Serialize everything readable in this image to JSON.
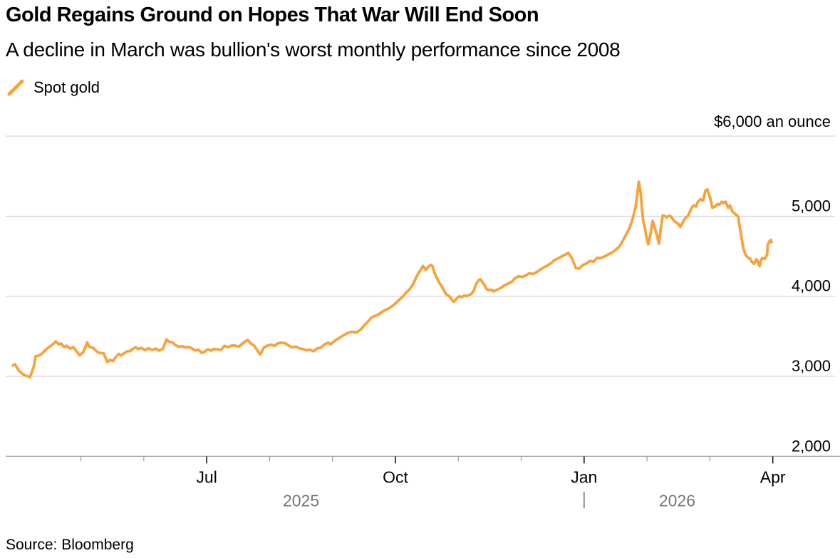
{
  "header": {
    "title": "Gold Regains Ground on Hopes That War Will End Soon",
    "subtitle": "A decline in March was bullion's worst monthly performance since 2008"
  },
  "legend": {
    "label": "Spot gold",
    "marker": "orange-slash"
  },
  "source": {
    "text": "Source: Bloomberg"
  },
  "colors": {
    "line": "#F7A33C",
    "grid": "#CDCDCD",
    "axis_line": "#A9A9A9",
    "tick_major": "#1A1A1A",
    "tick_minor": "#9B9B9B",
    "year_text": "#767676",
    "label_text": "#000000",
    "background": "#FFFFFF"
  },
  "chart_data": {
    "type": "line",
    "title": "Gold Regains Ground on Hopes That War Will End Soon",
    "subtitle": "A decline in March was bullion's worst monthly performance since 2008",
    "unit_label": "$6,000 an ounce",
    "legend_entries": [
      "Spot gold"
    ],
    "legend_position": "top-left",
    "grid": "horizontal-only",
    "x_axis": {
      "unit": "months since 2025-04-01",
      "range": [
        -0.2,
        13.05
      ],
      "minor_ticks": [
        {
          "m": 1
        },
        {
          "m": 2
        },
        {
          "m": 4
        },
        {
          "m": 5
        },
        {
          "m": 7
        },
        {
          "m": 8
        },
        {
          "m": 10
        },
        {
          "m": 11
        }
      ],
      "major_ticks": [
        {
          "m": 3,
          "label": "Jul"
        },
        {
          "m": 6,
          "label": "Oct"
        },
        {
          "m": 9,
          "label": "Jan"
        },
        {
          "m": 12,
          "label": "Apr"
        }
      ],
      "year_labels": [
        {
          "label": "2025",
          "m": 4.5
        },
        {
          "label": "2026",
          "m": 10.48
        }
      ],
      "year_divider_m": 9
    },
    "y_axis": {
      "unit": "USD per troy ounce",
      "range": [
        2000,
        6000
      ],
      "ticks": [
        {
          "v": 6000,
          "label": "$6,000 an ounce"
        },
        {
          "v": 5000,
          "label": "5,000"
        },
        {
          "v": 4000,
          "label": "4,000"
        },
        {
          "v": 3000,
          "label": "3,000"
        },
        {
          "v": 2000,
          "label": "2,000"
        }
      ],
      "gridline_values": [
        6000,
        5000,
        4000,
        3000
      ],
      "axis_value": 2000
    },
    "series": [
      {
        "name": "Spot gold",
        "color": "#F7A33C",
        "points": [
          [
            -0.08,
            3135
          ],
          [
            -0.05,
            3150
          ],
          [
            0.01,
            3075
          ],
          [
            0.07,
            3030
          ],
          [
            0.12,
            3008
          ],
          [
            0.19,
            2990
          ],
          [
            0.25,
            3120
          ],
          [
            0.28,
            3248
          ],
          [
            0.34,
            3262
          ],
          [
            0.37,
            3276
          ],
          [
            0.45,
            3338
          ],
          [
            0.51,
            3374
          ],
          [
            0.57,
            3410
          ],
          [
            0.6,
            3436
          ],
          [
            0.65,
            3399
          ],
          [
            0.68,
            3410
          ],
          [
            0.74,
            3363
          ],
          [
            0.77,
            3381
          ],
          [
            0.83,
            3345
          ],
          [
            0.88,
            3363
          ],
          [
            0.93,
            3312
          ],
          [
            0.98,
            3262
          ],
          [
            1.04,
            3305
          ],
          [
            1.1,
            3423
          ],
          [
            1.13,
            3370
          ],
          [
            1.19,
            3356
          ],
          [
            1.25,
            3310
          ],
          [
            1.3,
            3290
          ],
          [
            1.36,
            3288
          ],
          [
            1.42,
            3178
          ],
          [
            1.46,
            3205
          ],
          [
            1.51,
            3190
          ],
          [
            1.55,
            3235
          ],
          [
            1.6,
            3280
          ],
          [
            1.64,
            3260
          ],
          [
            1.69,
            3290
          ],
          [
            1.73,
            3310
          ],
          [
            1.78,
            3315
          ],
          [
            1.82,
            3340
          ],
          [
            1.87,
            3363
          ],
          [
            1.91,
            3340
          ],
          [
            1.96,
            3355
          ],
          [
            2.02,
            3325
          ],
          [
            2.07,
            3350
          ],
          [
            2.13,
            3330
          ],
          [
            2.19,
            3345
          ],
          [
            2.24,
            3322
          ],
          [
            2.3,
            3340
          ],
          [
            2.33,
            3395
          ],
          [
            2.36,
            3462
          ],
          [
            2.4,
            3432
          ],
          [
            2.46,
            3420
          ],
          [
            2.5,
            3390
          ],
          [
            2.55,
            3370
          ],
          [
            2.6,
            3375
          ],
          [
            2.66,
            3363
          ],
          [
            2.72,
            3365
          ],
          [
            2.77,
            3345
          ],
          [
            2.82,
            3322
          ],
          [
            2.87,
            3330
          ],
          [
            2.92,
            3292
          ],
          [
            2.97,
            3308
          ],
          [
            3.02,
            3338
          ],
          [
            3.07,
            3320
          ],
          [
            3.11,
            3340
          ],
          [
            3.17,
            3338
          ],
          [
            3.23,
            3330
          ],
          [
            3.28,
            3380
          ],
          [
            3.34,
            3363
          ],
          [
            3.4,
            3385
          ],
          [
            3.45,
            3383
          ],
          [
            3.51,
            3370
          ],
          [
            3.57,
            3410
          ],
          [
            3.65,
            3455
          ],
          [
            3.7,
            3410
          ],
          [
            3.75,
            3385
          ],
          [
            3.79,
            3340
          ],
          [
            3.85,
            3272
          ],
          [
            3.91,
            3360
          ],
          [
            3.96,
            3380
          ],
          [
            4.02,
            3395
          ],
          [
            4.08,
            3380
          ],
          [
            4.13,
            3412
          ],
          [
            4.19,
            3420
          ],
          [
            4.25,
            3412
          ],
          [
            4.3,
            3385
          ],
          [
            4.36,
            3363
          ],
          [
            4.42,
            3370
          ],
          [
            4.47,
            3350
          ],
          [
            4.53,
            3340
          ],
          [
            4.59,
            3325
          ],
          [
            4.64,
            3330
          ],
          [
            4.7,
            3312
          ],
          [
            4.76,
            3350
          ],
          [
            4.81,
            3355
          ],
          [
            4.87,
            3395
          ],
          [
            4.93,
            3420
          ],
          [
            4.97,
            3400
          ],
          [
            5.04,
            3445
          ],
          [
            5.11,
            3480
          ],
          [
            5.17,
            3510
          ],
          [
            5.24,
            3540
          ],
          [
            5.31,
            3556
          ],
          [
            5.38,
            3546
          ],
          [
            5.45,
            3585
          ],
          [
            5.51,
            3640
          ],
          [
            5.56,
            3680
          ],
          [
            5.61,
            3727
          ],
          [
            5.66,
            3750
          ],
          [
            5.72,
            3766
          ],
          [
            5.77,
            3795
          ],
          [
            5.83,
            3825
          ],
          [
            5.89,
            3845
          ],
          [
            5.95,
            3877
          ],
          [
            6.0,
            3910
          ],
          [
            6.06,
            3955
          ],
          [
            6.11,
            3990
          ],
          [
            6.17,
            4045
          ],
          [
            6.23,
            4090
          ],
          [
            6.28,
            4150
          ],
          [
            6.34,
            4250
          ],
          [
            6.4,
            4330
          ],
          [
            6.44,
            4378
          ],
          [
            6.48,
            4330
          ],
          [
            6.51,
            4355
          ],
          [
            6.56,
            4392
          ],
          [
            6.59,
            4375
          ],
          [
            6.62,
            4295
          ],
          [
            6.66,
            4225
          ],
          [
            6.7,
            4165
          ],
          [
            6.74,
            4120
          ],
          [
            6.77,
            4075
          ],
          [
            6.8,
            4030
          ],
          [
            6.84,
            4008
          ],
          [
            6.87,
            3990
          ],
          [
            6.91,
            3940
          ],
          [
            6.93,
            3930
          ],
          [
            6.96,
            3960
          ],
          [
            7.0,
            3990
          ],
          [
            7.02,
            4000
          ],
          [
            7.05,
            3988
          ],
          [
            7.1,
            4010
          ],
          [
            7.13,
            4000
          ],
          [
            7.17,
            4015
          ],
          [
            7.21,
            4030
          ],
          [
            7.25,
            4075
          ],
          [
            7.28,
            4150
          ],
          [
            7.33,
            4205
          ],
          [
            7.35,
            4212
          ],
          [
            7.38,
            4180
          ],
          [
            7.42,
            4135
          ],
          [
            7.45,
            4090
          ],
          [
            7.48,
            4075
          ],
          [
            7.52,
            4082
          ],
          [
            7.56,
            4060
          ],
          [
            7.6,
            4075
          ],
          [
            7.64,
            4090
          ],
          [
            7.69,
            4110
          ],
          [
            7.73,
            4135
          ],
          [
            7.79,
            4155
          ],
          [
            7.85,
            4180
          ],
          [
            7.9,
            4222
          ],
          [
            7.96,
            4250
          ],
          [
            8.02,
            4240
          ],
          [
            8.07,
            4260
          ],
          [
            8.13,
            4285
          ],
          [
            8.19,
            4278
          ],
          [
            8.24,
            4300
          ],
          [
            8.3,
            4330
          ],
          [
            8.36,
            4360
          ],
          [
            8.41,
            4380
          ],
          [
            8.47,
            4410
          ],
          [
            8.53,
            4450
          ],
          [
            8.58,
            4470
          ],
          [
            8.64,
            4495
          ],
          [
            8.7,
            4520
          ],
          [
            8.75,
            4540
          ],
          [
            8.81,
            4470
          ],
          [
            8.87,
            4350
          ],
          [
            8.92,
            4345
          ],
          [
            8.98,
            4390
          ],
          [
            9.04,
            4410
          ],
          [
            9.09,
            4440
          ],
          [
            9.15,
            4432
          ],
          [
            9.21,
            4480
          ],
          [
            9.26,
            4475
          ],
          [
            9.32,
            4495
          ],
          [
            9.38,
            4520
          ],
          [
            9.43,
            4540
          ],
          [
            9.49,
            4570
          ],
          [
            9.55,
            4610
          ],
          [
            9.6,
            4670
          ],
          [
            9.66,
            4760
          ],
          [
            9.72,
            4850
          ],
          [
            9.77,
            4960
          ],
          [
            9.82,
            5120
          ],
          [
            9.85,
            5300
          ],
          [
            9.87,
            5430
          ],
          [
            9.9,
            5290
          ],
          [
            9.92,
            5090
          ],
          [
            9.94,
            4940
          ],
          [
            9.97,
            4840
          ],
          [
            9.99,
            4740
          ],
          [
            10.02,
            4648
          ],
          [
            10.06,
            4790
          ],
          [
            10.09,
            4940
          ],
          [
            10.12,
            4860
          ],
          [
            10.16,
            4760
          ],
          [
            10.19,
            4655
          ],
          [
            10.22,
            4850
          ],
          [
            10.25,
            5010
          ],
          [
            10.28,
            5005
          ],
          [
            10.31,
            4985
          ],
          [
            10.34,
            5000
          ],
          [
            10.36,
            5008
          ],
          [
            10.4,
            4975
          ],
          [
            10.42,
            4952
          ],
          [
            10.45,
            4930
          ],
          [
            10.48,
            4915
          ],
          [
            10.51,
            4890
          ],
          [
            10.53,
            4865
          ],
          [
            10.57,
            4920
          ],
          [
            10.59,
            4955
          ],
          [
            10.62,
            4985
          ],
          [
            10.65,
            5000
          ],
          [
            10.68,
            5050
          ],
          [
            10.7,
            5090
          ],
          [
            10.74,
            5135
          ],
          [
            10.78,
            5120
          ],
          [
            10.81,
            5180
          ],
          [
            10.85,
            5210
          ],
          [
            10.89,
            5195
          ],
          [
            10.93,
            5320
          ],
          [
            10.96,
            5335
          ],
          [
            11.01,
            5210
          ],
          [
            11.04,
            5105
          ],
          [
            11.08,
            5120
          ],
          [
            11.12,
            5150
          ],
          [
            11.15,
            5140
          ],
          [
            11.19,
            5180
          ],
          [
            11.21,
            5165
          ],
          [
            11.25,
            5180
          ],
          [
            11.29,
            5105
          ],
          [
            11.32,
            5135
          ],
          [
            11.36,
            5055
          ],
          [
            11.4,
            5030
          ],
          [
            11.43,
            5010
          ],
          [
            11.45,
            4995
          ],
          [
            11.47,
            4880
          ],
          [
            11.49,
            4800
          ],
          [
            11.53,
            4600
          ],
          [
            11.57,
            4512
          ],
          [
            11.61,
            4480
          ],
          [
            11.64,
            4470
          ],
          [
            11.66,
            4435
          ],
          [
            11.7,
            4405
          ],
          [
            11.74,
            4462
          ],
          [
            11.77,
            4420
          ],
          [
            11.79,
            4375
          ],
          [
            11.81,
            4445
          ],
          [
            11.83,
            4475
          ],
          [
            11.87,
            4465
          ],
          [
            11.89,
            4490
          ],
          [
            11.91,
            4520
          ],
          [
            11.92,
            4640
          ],
          [
            11.95,
            4690
          ],
          [
            11.97,
            4705
          ],
          [
            11.98,
            4675
          ]
        ]
      }
    ]
  }
}
